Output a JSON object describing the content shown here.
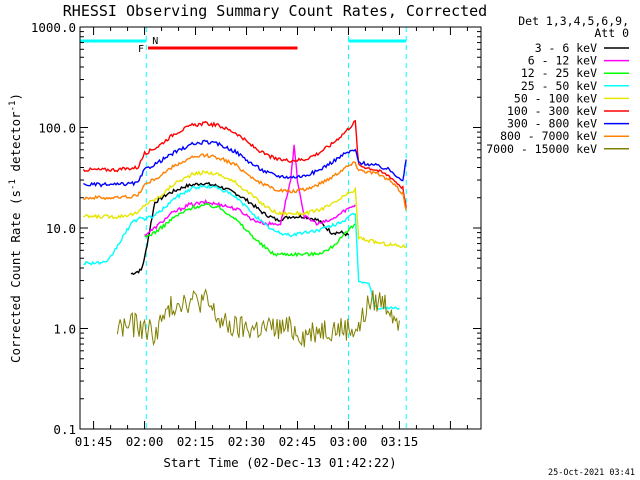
{
  "chart_data": {
    "type": "line",
    "title": "RHESSI Observing Summary Count Rates, Corrected",
    "xlabel": "Start Time (02-Dec-13 01:42:22)",
    "ylabel": "Corrected Count Rate (s⁻¹ detector⁻¹)",
    "ylabel_main": "Corrected Count Rate (s",
    "ylabel_sup1": "-1",
    "ylabel_mid": " detector",
    "ylabel_sup2": "-1",
    "ylabel_end": ")",
    "y_scale": "log",
    "xlim_minutes": [
      -19,
      99
    ],
    "ylim": [
      0.1,
      1000
    ],
    "x_ticks": [
      {
        "t": -15,
        "label": "01:45"
      },
      {
        "t": 0,
        "label": "02:00"
      },
      {
        "t": 15,
        "label": "02:15"
      },
      {
        "t": 30,
        "label": "02:30"
      },
      {
        "t": 45,
        "label": "02:45"
      },
      {
        "t": 60,
        "label": "03:00"
      },
      {
        "t": 75,
        "label": "03:15"
      }
    ],
    "y_ticks": [
      {
        "v": 1000,
        "label": "1000.0"
      },
      {
        "v": 100,
        "label": "100.0"
      },
      {
        "v": 10,
        "label": "10.0"
      },
      {
        "v": 1,
        "label": "1.0"
      },
      {
        "v": 0.1,
        "label": "0.1"
      }
    ],
    "legend": {
      "header1": "Det 1,3,4,5,6,9,",
      "header2": "Att 0",
      "placement": "right"
    },
    "flags": {
      "F_label": "F",
      "N_label": "N",
      "flare_interval": [
        1,
        45
      ],
      "night_intervals": [
        [
          -19,
          0.5
        ],
        [
          60,
          77
        ]
      ]
    },
    "night_boundaries": [
      -19,
      0.5,
      60,
      77
    ],
    "timestamp": "25-Oct-2021 03:41",
    "series": [
      {
        "name": "3 - 6 keV",
        "color": "#000000",
        "points": [
          [
            -4,
            3.5
          ],
          [
            -1,
            3.8
          ],
          [
            0,
            5
          ],
          [
            3,
            18
          ],
          [
            7,
            22
          ],
          [
            12,
            26
          ],
          [
            17,
            28
          ],
          [
            22,
            26
          ],
          [
            27,
            22
          ],
          [
            31,
            18
          ],
          [
            35,
            14
          ],
          [
            39,
            12
          ],
          [
            43,
            13
          ],
          [
            47,
            13
          ],
          [
            51,
            12
          ],
          [
            55,
            9
          ],
          [
            58,
            9
          ],
          [
            60,
            8.5
          ]
        ]
      },
      {
        "name": "6 - 12 keV",
        "color": "#ff00ff",
        "points": [
          [
            0,
            8.5
          ],
          [
            3,
            10
          ],
          [
            8,
            14
          ],
          [
            13,
            17
          ],
          [
            18,
            18
          ],
          [
            23,
            17
          ],
          [
            28,
            15
          ],
          [
            32,
            12
          ],
          [
            36,
            11
          ],
          [
            40,
            11
          ],
          [
            43,
            30
          ],
          [
            44,
            65
          ],
          [
            45,
            30
          ],
          [
            47,
            13
          ],
          [
            51,
            11
          ],
          [
            55,
            12
          ],
          [
            59,
            15
          ],
          [
            62,
            17
          ]
        ]
      },
      {
        "name": "12 - 25 keV",
        "color": "#00ff00",
        "points": [
          [
            0,
            8
          ],
          [
            4,
            9.5
          ],
          [
            9,
            13
          ],
          [
            14,
            16
          ],
          [
            18,
            17
          ],
          [
            22,
            16
          ],
          [
            26,
            13
          ],
          [
            30,
            9.5
          ],
          [
            34,
            7
          ],
          [
            38,
            5.5
          ],
          [
            42,
            5.5
          ],
          [
            46,
            5.5
          ],
          [
            50,
            5.5
          ],
          [
            54,
            6
          ],
          [
            58,
            8
          ],
          [
            62,
            11
          ]
        ]
      },
      {
        "name": "25 - 50 keV",
        "color": "#00ffff",
        "points": [
          [
            -18,
            4.5
          ],
          [
            -11,
            4.5
          ],
          [
            -4,
            11
          ],
          [
            -1,
            13
          ],
          [
            0,
            12
          ],
          [
            4,
            14
          ],
          [
            9,
            20
          ],
          [
            14,
            25
          ],
          [
            18,
            26
          ],
          [
            22,
            25
          ],
          [
            27,
            20
          ],
          [
            31,
            15
          ],
          [
            35,
            11
          ],
          [
            39,
            9
          ],
          [
            43,
            8.5
          ],
          [
            47,
            9
          ],
          [
            51,
            9.5
          ],
          [
            55,
            10.5
          ],
          [
            59,
            12
          ],
          [
            62,
            14
          ],
          [
            63,
            3
          ],
          [
            66,
            2.8
          ],
          [
            68,
            1.6
          ],
          [
            75,
            1.6
          ]
        ]
      },
      {
        "name": "50 - 100 keV",
        "color": "#e6e600",
        "points": [
          [
            -18,
            13
          ],
          [
            -8,
            13
          ],
          [
            -2,
            14
          ],
          [
            0,
            17
          ],
          [
            4,
            20
          ],
          [
            9,
            28
          ],
          [
            14,
            34
          ],
          [
            18,
            36
          ],
          [
            22,
            34
          ],
          [
            27,
            28
          ],
          [
            31,
            22
          ],
          [
            35,
            17
          ],
          [
            39,
            14
          ],
          [
            43,
            14
          ],
          [
            47,
            14
          ],
          [
            51,
            15
          ],
          [
            55,
            17
          ],
          [
            59,
            21
          ],
          [
            62,
            24
          ],
          [
            63,
            8
          ],
          [
            66,
            7.5
          ],
          [
            70,
            7
          ],
          [
            77,
            6.5
          ]
        ]
      },
      {
        "name": "100 - 300 keV",
        "color": "#ff0000",
        "points": [
          [
            -18,
            38
          ],
          [
            -8,
            38
          ],
          [
            -2,
            40
          ],
          [
            0,
            55
          ],
          [
            4,
            65
          ],
          [
            9,
            88
          ],
          [
            14,
            105
          ],
          [
            18,
            110
          ],
          [
            22,
            104
          ],
          [
            27,
            88
          ],
          [
            31,
            68
          ],
          [
            35,
            55
          ],
          [
            39,
            48
          ],
          [
            43,
            47
          ],
          [
            47,
            48
          ],
          [
            51,
            55
          ],
          [
            55,
            68
          ],
          [
            59,
            90
          ],
          [
            62,
            115
          ],
          [
            63,
            42
          ],
          [
            68,
            38
          ],
          [
            72,
            33
          ],
          [
            76,
            25
          ],
          [
            77,
            16
          ]
        ]
      },
      {
        "name": "300 - 800 keV",
        "color": "#0000ff",
        "points": [
          [
            -18,
            27
          ],
          [
            -8,
            27
          ],
          [
            -2,
            28
          ],
          [
            0,
            38
          ],
          [
            4,
            45
          ],
          [
            9,
            57
          ],
          [
            14,
            68
          ],
          [
            18,
            72
          ],
          [
            22,
            68
          ],
          [
            27,
            57
          ],
          [
            31,
            45
          ],
          [
            35,
            37
          ],
          [
            39,
            33
          ],
          [
            43,
            32
          ],
          [
            47,
            33
          ],
          [
            51,
            37
          ],
          [
            55,
            45
          ],
          [
            59,
            55
          ],
          [
            62,
            60
          ],
          [
            63,
            45
          ],
          [
            68,
            42
          ],
          [
            72,
            38
          ],
          [
            76,
            30
          ],
          [
            77,
            48
          ]
        ]
      },
      {
        "name": "800 - 7000 keV",
        "color": "#ff8000",
        "points": [
          [
            -18,
            20
          ],
          [
            -8,
            20
          ],
          [
            -2,
            21
          ],
          [
            0,
            27
          ],
          [
            4,
            32
          ],
          [
            9,
            42
          ],
          [
            14,
            50
          ],
          [
            18,
            53
          ],
          [
            22,
            50
          ],
          [
            27,
            42
          ],
          [
            31,
            33
          ],
          [
            35,
            27
          ],
          [
            39,
            24
          ],
          [
            43,
            23
          ],
          [
            47,
            24
          ],
          [
            51,
            27
          ],
          [
            55,
            32
          ],
          [
            59,
            40
          ],
          [
            62,
            45
          ],
          [
            63,
            38
          ],
          [
            68,
            35
          ],
          [
            72,
            30
          ],
          [
            76,
            22
          ],
          [
            77,
            15
          ]
        ]
      },
      {
        "name": "7000 - 15000 keV",
        "color": "#808000",
        "points": [
          [
            -8,
            1
          ],
          [
            -4,
            1.1
          ],
          [
            0,
            1
          ],
          [
            3,
            0.9
          ],
          [
            7,
            1.5
          ],
          [
            10,
            1.9
          ],
          [
            14,
            1.9
          ],
          [
            18,
            1.9
          ],
          [
            20,
            1.5
          ],
          [
            23,
            1.1
          ],
          [
            27,
            1
          ],
          [
            31,
            1
          ],
          [
            35,
            1
          ],
          [
            39,
            1
          ],
          [
            43,
            1
          ],
          [
            47,
            0.85
          ],
          [
            51,
            1
          ],
          [
            55,
            1
          ],
          [
            59,
            1
          ],
          [
            63,
            1
          ],
          [
            66,
            1.8
          ],
          [
            70,
            1.9
          ],
          [
            73,
            1.5
          ],
          [
            75,
            1.2
          ]
        ]
      }
    ]
  }
}
